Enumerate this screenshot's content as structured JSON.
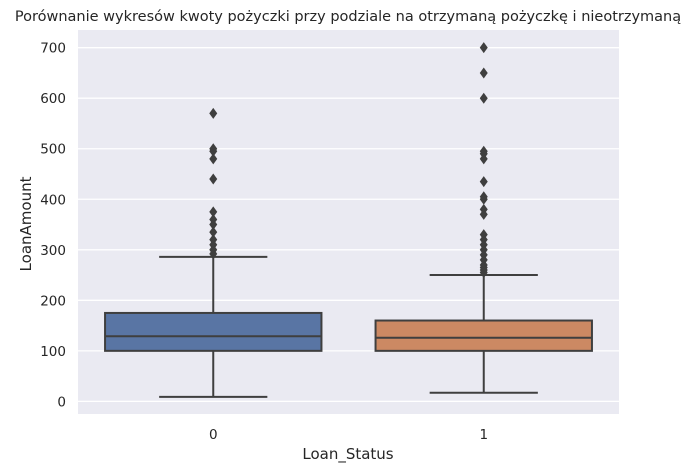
{
  "chart_data": {
    "type": "box",
    "title": "Porównanie wykresów kwoty pożyczki przy podziale na otrzymaną pożyczkę i nieotrzymaną",
    "xlabel": "Loan_Status",
    "ylabel": "LoanAmount",
    "ylim": [
      -25,
      735
    ],
    "yticks": [
      0,
      100,
      200,
      300,
      400,
      500,
      600,
      700
    ],
    "grid": true,
    "categories": [
      "0",
      "1"
    ],
    "boxes": [
      {
        "category": "0",
        "color": "#5975a4",
        "whisker_low": 9,
        "q1": 100,
        "median": 129,
        "q3": 175,
        "whisker_high": 286,
        "outliers": [
          570,
          500,
          495,
          480,
          440,
          375,
          360,
          350,
          335,
          320,
          310,
          300,
          292
        ]
      },
      {
        "category": "1",
        "color": "#cc8963",
        "whisker_low": 17,
        "q1": 100,
        "median": 126,
        "q3": 160,
        "whisker_high": 250,
        "outliers": [
          700,
          650,
          600,
          495,
          490,
          480,
          435,
          405,
          400,
          380,
          370,
          330,
          320,
          310,
          300,
          290,
          280,
          270,
          265,
          260,
          255
        ]
      }
    ]
  }
}
